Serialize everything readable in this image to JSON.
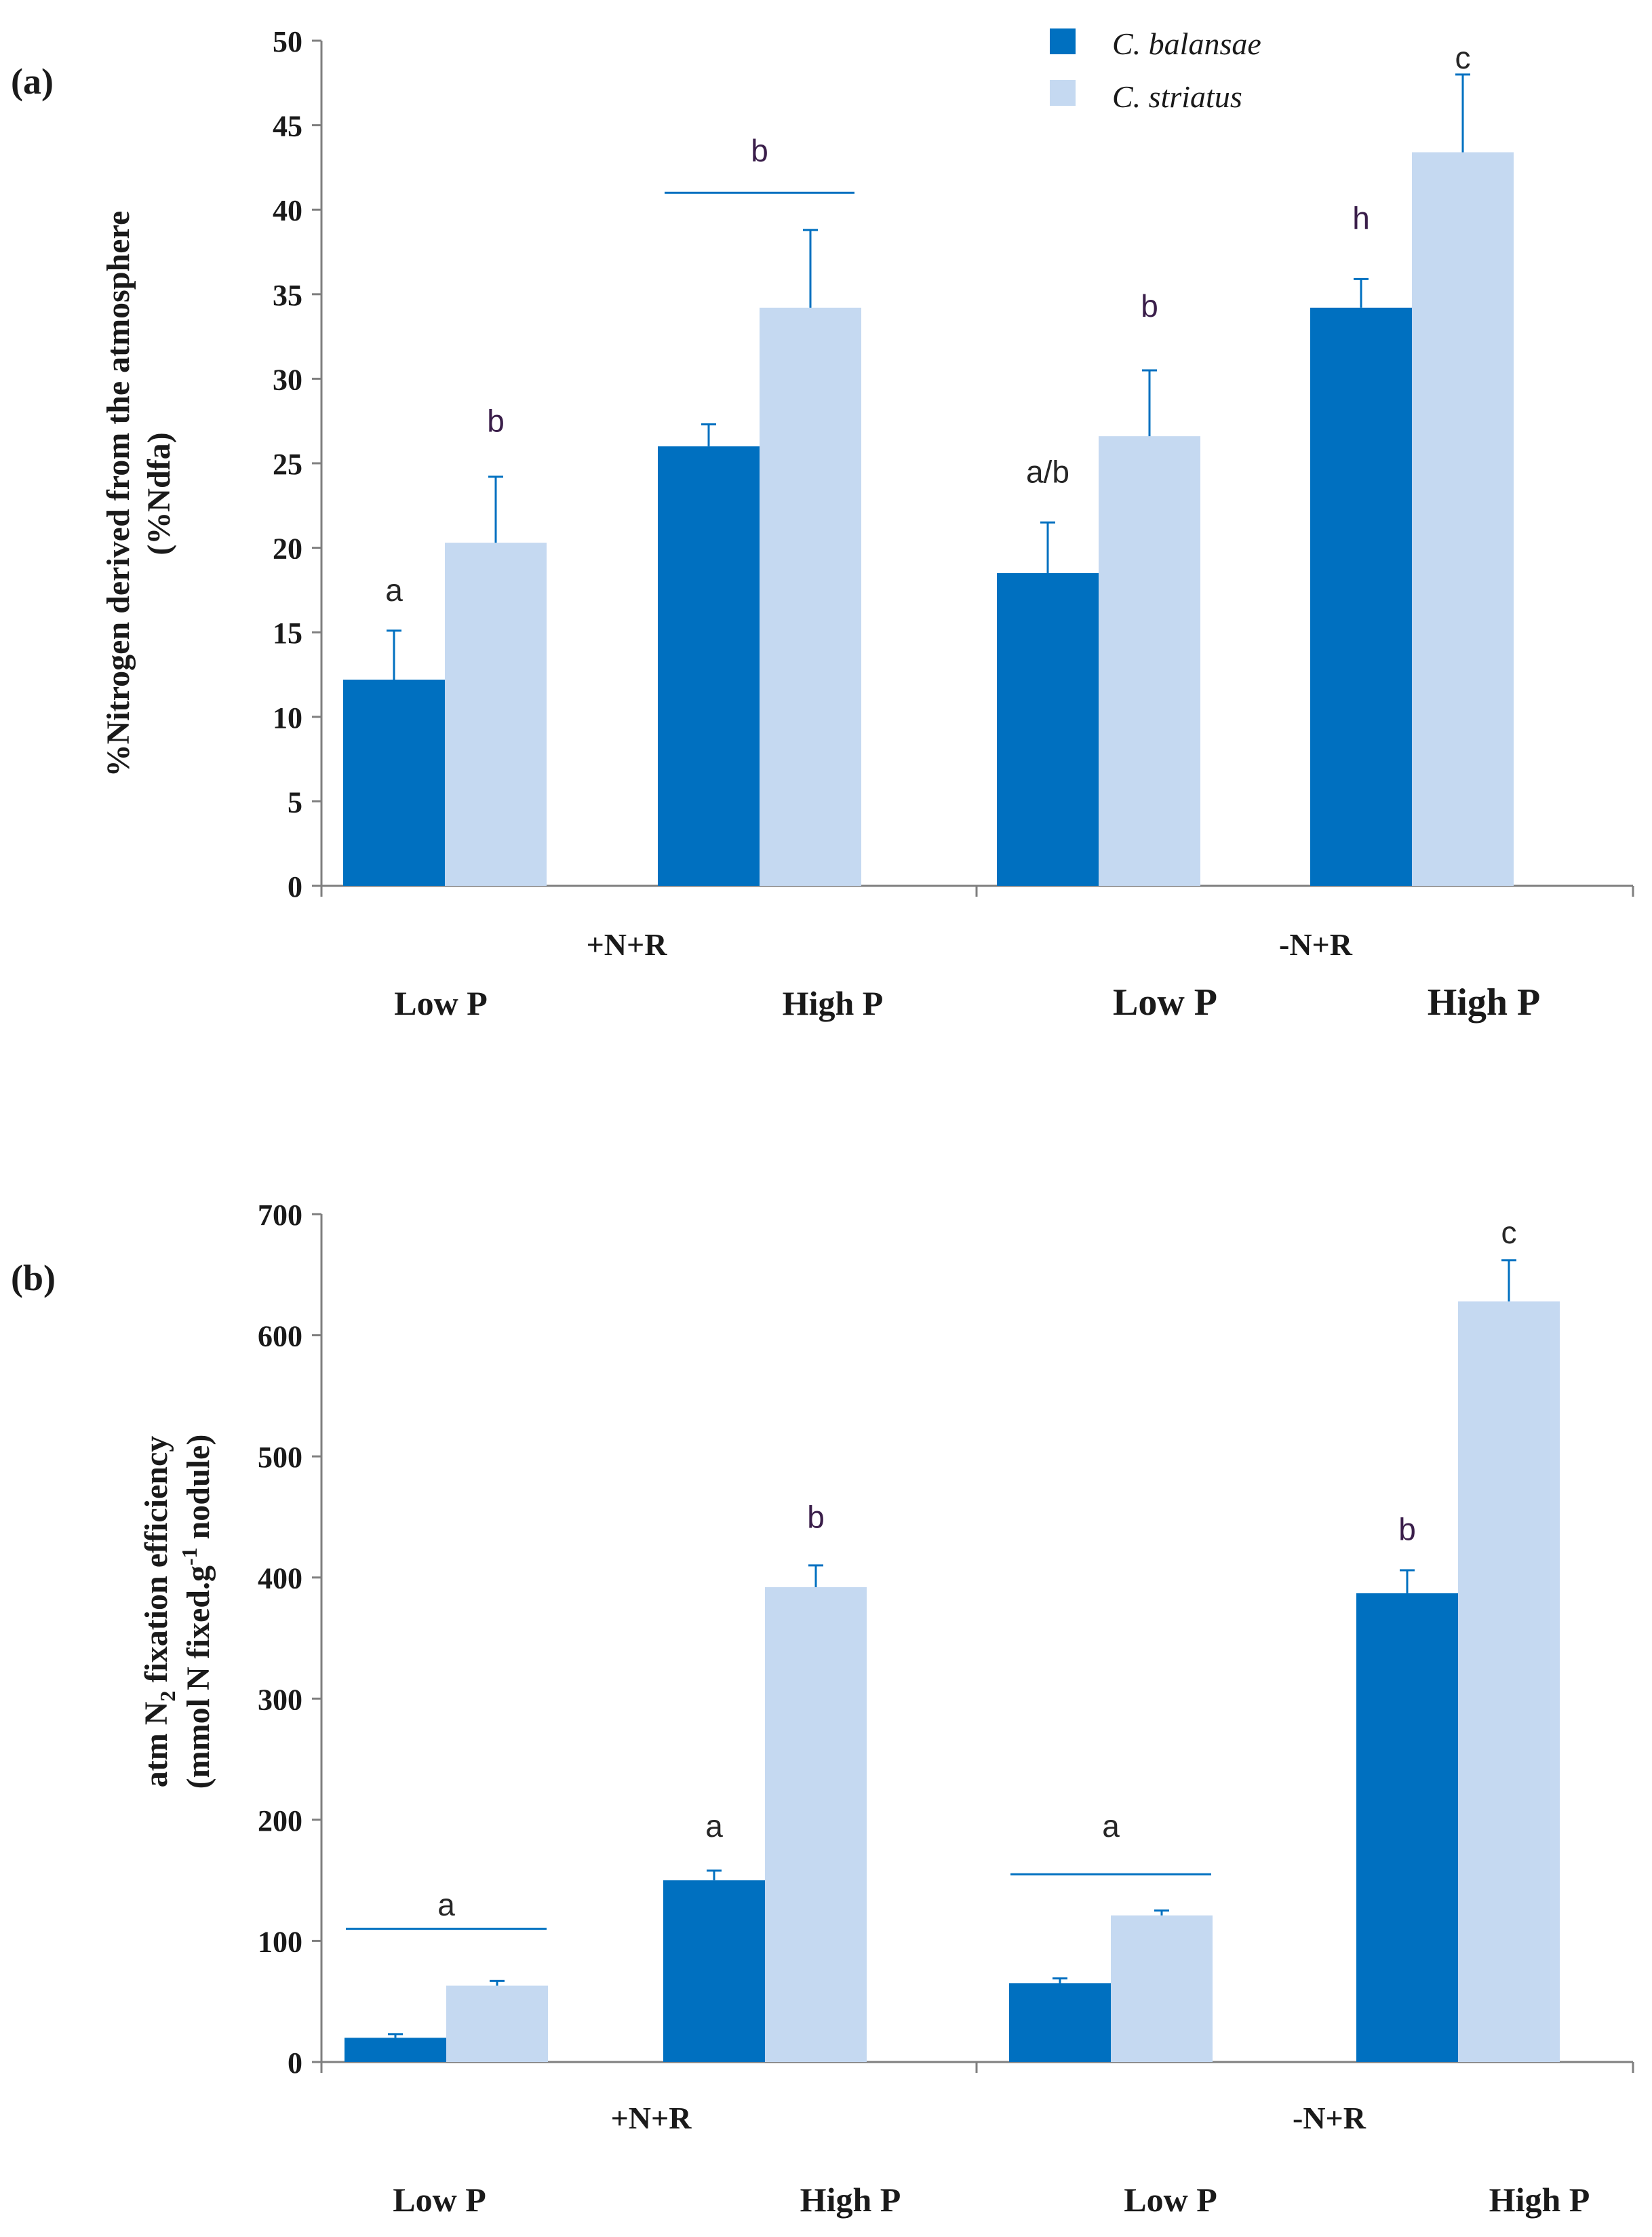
{
  "colors": {
    "series_1": "#0070C0",
    "series_2": "#C5D9F1",
    "errorbar": "#0070C0",
    "axis": "#7F7F7F",
    "letters_a": "#262626",
    "letters_b": "#3A1E4A"
  },
  "legend": {
    "series_1": "C. balansae",
    "series_2": "C. striatus"
  },
  "chart_data": [
    {
      "type": "bar",
      "panel_label": "(a)",
      "ylabel_line1": "%Nitrogen derived from the atmosphere",
      "ylabel_line2": "(%Ndfa)",
      "ylim": [
        0,
        50
      ],
      "yticks": [
        0,
        5,
        10,
        15,
        20,
        25,
        30,
        35,
        40,
        45,
        50
      ],
      "groups": [
        "+N+R",
        "-N+R"
      ],
      "categories": [
        "Low P",
        "High P",
        "Low P",
        "High P"
      ],
      "series": [
        {
          "name": "C. balansae",
          "values": [
            12.2,
            26.0,
            18.5,
            34.2
          ],
          "errors": [
            2.9,
            1.3,
            3.0,
            1.7
          ]
        },
        {
          "name": "C. striatus",
          "values": [
            20.3,
            34.2,
            26.6,
            43.4
          ],
          "errors": [
            3.9,
            4.6,
            3.9,
            4.6
          ]
        }
      ],
      "annotations": [
        {
          "text": "a",
          "value": 17.5,
          "cluster": 0,
          "bar": 0
        },
        {
          "text": "b",
          "value": 27.5,
          "cluster": 0,
          "bar": 1
        },
        {
          "text": "b",
          "value": 43.5,
          "cluster": 1,
          "bar": -1,
          "line_value": 41
        },
        {
          "text": "a/b",
          "value": 24.5,
          "cluster": 2,
          "bar": 0
        },
        {
          "text": "b",
          "value": 34.3,
          "cluster": 2,
          "bar": 1
        },
        {
          "text": "h",
          "value": 39.5,
          "cluster": 3,
          "bar": 0
        },
        {
          "text": "c",
          "value": 49.0,
          "cluster": 3,
          "bar": 1
        }
      ]
    },
    {
      "type": "bar",
      "panel_label": "(b)",
      "ylabel_line1": "atm N2 fixation efficiency",
      "ylabel_line2": "(mmol N fixed.g-1 nodule)",
      "ylim": [
        0,
        700
      ],
      "yticks": [
        0,
        100,
        200,
        300,
        400,
        500,
        600,
        700
      ],
      "groups": [
        "+N+R",
        "-N+R"
      ],
      "categories": [
        "Low P",
        "High P",
        "Low P",
        "High P"
      ],
      "series": [
        {
          "name": "C. balansae",
          "values": [
            20,
            150,
            65,
            387
          ],
          "errors": [
            3,
            8,
            4,
            19
          ]
        },
        {
          "name": "C. striatus",
          "values": [
            63,
            392,
            121,
            628
          ],
          "errors": [
            4,
            18,
            4,
            34
          ]
        }
      ],
      "annotations": [
        {
          "text": "a",
          "value": 130,
          "cluster": 0,
          "bar": -1,
          "line_value": 110
        },
        {
          "text": "a",
          "value": 195,
          "cluster": 1,
          "bar": 0
        },
        {
          "text": "b",
          "value": 450,
          "cluster": 1,
          "bar": 1
        },
        {
          "text": "a",
          "value": 195,
          "cluster": 2,
          "bar": -1,
          "line_value": 155
        },
        {
          "text": "b",
          "value": 440,
          "cluster": 3,
          "bar": 0
        },
        {
          "text": "c",
          "value": 685,
          "cluster": 3,
          "bar": 1
        }
      ]
    }
  ]
}
